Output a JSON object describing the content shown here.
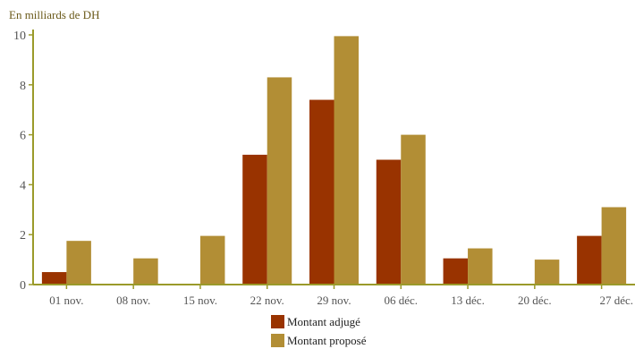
{
  "chart_data": {
    "type": "bar",
    "unit_label": "En milliards de DH",
    "categories": [
      "01 nov.",
      "08 nov.",
      "15 nov.",
      "22 nov.",
      "29 nov.",
      "06 déc.",
      "13 déc.",
      "20 déc.",
      "27 déc."
    ],
    "series": [
      {
        "name": "Montant adjugé",
        "color": "#993300",
        "values": [
          0.5,
          0,
          0,
          5.2,
          7.4,
          5.0,
          1.05,
          0,
          1.95
        ]
      },
      {
        "name": "Montant proposé",
        "color": "#B28E35",
        "values": [
          1.75,
          1.05,
          1.95,
          8.3,
          9.95,
          6.0,
          1.45,
          1.0,
          3.1
        ]
      }
    ],
    "yticks": [
      0,
      2,
      4,
      6,
      8,
      10
    ],
    "ylim": [
      0,
      10
    ],
    "grid": false,
    "legend_position": "bottom-center",
    "axis_color": "#9A9A2A"
  }
}
